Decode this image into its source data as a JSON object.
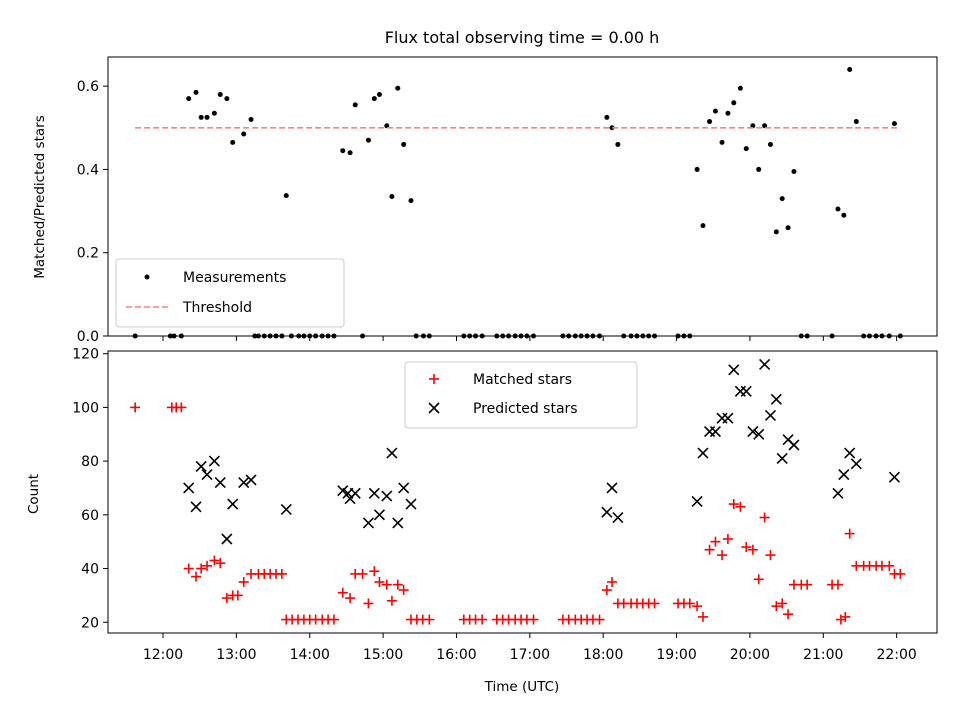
{
  "chart_data": [
    {
      "type": "scatter",
      "title": "Flux total observing time = 0.00 h",
      "ylabel": "Matched/Predicted stars",
      "xlabel": "",
      "ylim": [
        0,
        0.67
      ],
      "yticks": [
        0.0,
        0.2,
        0.4,
        0.6
      ],
      "ytick_labels": [
        "0.0",
        "0.2",
        "0.4",
        "0.6"
      ],
      "legend_position": "lower-left",
      "series": [
        {
          "name": "Measurements",
          "kind": "scatter",
          "marker": "dot",
          "color": "#000000",
          "points": [
            [
              11.62,
              0
            ],
            [
              12.1,
              0
            ],
            [
              12.15,
              0
            ],
            [
              12.25,
              0
            ],
            [
              12.35,
              0.57
            ],
            [
              12.45,
              0.585
            ],
            [
              12.52,
              0.525
            ],
            [
              12.6,
              0.525
            ],
            [
              12.7,
              0.535
            ],
            [
              12.78,
              0.58
            ],
            [
              12.87,
              0.57
            ],
            [
              12.95,
              0.465
            ],
            [
              13.1,
              0.485
            ],
            [
              13.2,
              0.52
            ],
            [
              13.25,
              0
            ],
            [
              13.3,
              0
            ],
            [
              13.38,
              0
            ],
            [
              13.46,
              0
            ],
            [
              13.54,
              0
            ],
            [
              13.62,
              0
            ],
            [
              13.68,
              0.337
            ],
            [
              13.75,
              0
            ],
            [
              13.85,
              0
            ],
            [
              13.92,
              0
            ],
            [
              14.0,
              0
            ],
            [
              14.08,
              0
            ],
            [
              14.17,
              0
            ],
            [
              14.25,
              0
            ],
            [
              14.33,
              0
            ],
            [
              14.45,
              0.445
            ],
            [
              14.55,
              0.44
            ],
            [
              14.62,
              0.555
            ],
            [
              14.72,
              0
            ],
            [
              14.8,
              0.47
            ],
            [
              14.88,
              0.57
            ],
            [
              14.95,
              0.58
            ],
            [
              15.05,
              0.505
            ],
            [
              15.12,
              0.335
            ],
            [
              15.2,
              0.595
            ],
            [
              15.28,
              0.46
            ],
            [
              15.38,
              0.325
            ],
            [
              15.45,
              0
            ],
            [
              15.55,
              0
            ],
            [
              15.63,
              0
            ],
            [
              16.1,
              0
            ],
            [
              16.18,
              0
            ],
            [
              16.26,
              0
            ],
            [
              16.35,
              0
            ],
            [
              16.55,
              0
            ],
            [
              16.63,
              0
            ],
            [
              16.71,
              0
            ],
            [
              16.8,
              0
            ],
            [
              16.88,
              0
            ],
            [
              16.96,
              0
            ],
            [
              17.05,
              0
            ],
            [
              17.45,
              0
            ],
            [
              17.53,
              0
            ],
            [
              17.62,
              0
            ],
            [
              17.7,
              0
            ],
            [
              17.78,
              0
            ],
            [
              17.86,
              0
            ],
            [
              17.95,
              0
            ],
            [
              18.05,
              0.525
            ],
            [
              18.12,
              0.5
            ],
            [
              18.2,
              0.46
            ],
            [
              18.28,
              0
            ],
            [
              18.38,
              0
            ],
            [
              18.46,
              0
            ],
            [
              18.54,
              0
            ],
            [
              18.62,
              0
            ],
            [
              18.7,
              0
            ],
            [
              19.02,
              0
            ],
            [
              19.1,
              0
            ],
            [
              19.18,
              0
            ],
            [
              19.28,
              0.4
            ],
            [
              19.36,
              0.265
            ],
            [
              19.45,
              0.515
            ],
            [
              19.53,
              0.54
            ],
            [
              19.62,
              0.465
            ],
            [
              19.7,
              0.535
            ],
            [
              19.78,
              0.56
            ],
            [
              19.87,
              0.595
            ],
            [
              19.95,
              0.45
            ],
            [
              20.04,
              0.505
            ],
            [
              20.12,
              0.4
            ],
            [
              20.2,
              0.505
            ],
            [
              20.28,
              0.46
            ],
            [
              20.36,
              0.25
            ],
            [
              20.44,
              0.33
            ],
            [
              20.52,
              0.26
            ],
            [
              20.6,
              0.395
            ],
            [
              20.7,
              0
            ],
            [
              20.78,
              0
            ],
            [
              21.12,
              0
            ],
            [
              21.2,
              0.305
            ],
            [
              21.28,
              0.29
            ],
            [
              21.36,
              0.64
            ],
            [
              21.45,
              0.515
            ],
            [
              21.55,
              0
            ],
            [
              21.63,
              0
            ],
            [
              21.72,
              0
            ],
            [
              21.8,
              0
            ],
            [
              21.9,
              0
            ],
            [
              21.97,
              0.51
            ],
            [
              22.05,
              0
            ]
          ]
        },
        {
          "name": "Threshold",
          "kind": "line",
          "style": "dashed",
          "color": "#ff8080",
          "points": [
            [
              11.62,
              0.5
            ],
            [
              22.05,
              0.5
            ]
          ]
        }
      ]
    },
    {
      "type": "scatter",
      "title": "",
      "ylabel": "Count",
      "xlabel": "Time (UTC)",
      "ylim": [
        16,
        121
      ],
      "yticks": [
        20,
        40,
        60,
        80,
        100,
        120
      ],
      "ytick_labels": [
        "20",
        "40",
        "60",
        "80",
        "100",
        "120"
      ],
      "xlim": [
        11.25,
        22.55
      ],
      "xticks": [
        12,
        13,
        14,
        15,
        16,
        17,
        18,
        19,
        20,
        21,
        22
      ],
      "xtick_labels": [
        "12:00",
        "13:00",
        "14:00",
        "15:00",
        "16:00",
        "17:00",
        "18:00",
        "19:00",
        "20:00",
        "21:00",
        "22:00"
      ],
      "legend_position": "upper-center",
      "series": [
        {
          "name": "Matched stars",
          "kind": "scatter",
          "marker": "plus",
          "color": "#ff0000",
          "points": [
            [
              11.62,
              100
            ],
            [
              12.12,
              100
            ],
            [
              12.18,
              100
            ],
            [
              12.25,
              100
            ],
            [
              12.35,
              40
            ],
            [
              12.45,
              37
            ],
            [
              12.52,
              40
            ],
            [
              12.6,
              41
            ],
            [
              12.7,
              43
            ],
            [
              12.78,
              42
            ],
            [
              12.87,
              29
            ],
            [
              12.95,
              30
            ],
            [
              13.02,
              30
            ],
            [
              13.1,
              35
            ],
            [
              13.2,
              38
            ],
            [
              13.3,
              38
            ],
            [
              13.38,
              38
            ],
            [
              13.46,
              38
            ],
            [
              13.54,
              38
            ],
            [
              13.62,
              38
            ],
            [
              13.68,
              21
            ],
            [
              13.76,
              21
            ],
            [
              13.84,
              21
            ],
            [
              13.92,
              21
            ],
            [
              14.0,
              21
            ],
            [
              14.08,
              21
            ],
            [
              14.17,
              21
            ],
            [
              14.25,
              21
            ],
            [
              14.33,
              21
            ],
            [
              14.45,
              31
            ],
            [
              14.55,
              29
            ],
            [
              14.62,
              38
            ],
            [
              14.72,
              38
            ],
            [
              14.8,
              27
            ],
            [
              14.88,
              39
            ],
            [
              14.95,
              35
            ],
            [
              15.05,
              34
            ],
            [
              15.12,
              28
            ],
            [
              15.2,
              34
            ],
            [
              15.28,
              32
            ],
            [
              15.38,
              21
            ],
            [
              15.46,
              21
            ],
            [
              15.54,
              21
            ],
            [
              15.63,
              21
            ],
            [
              16.1,
              21
            ],
            [
              16.18,
              21
            ],
            [
              16.26,
              21
            ],
            [
              16.35,
              21
            ],
            [
              16.55,
              21
            ],
            [
              16.63,
              21
            ],
            [
              16.71,
              21
            ],
            [
              16.8,
              21
            ],
            [
              16.88,
              21
            ],
            [
              16.96,
              21
            ],
            [
              17.05,
              21
            ],
            [
              17.45,
              21
            ],
            [
              17.53,
              21
            ],
            [
              17.62,
              21
            ],
            [
              17.7,
              21
            ],
            [
              17.78,
              21
            ],
            [
              17.86,
              21
            ],
            [
              17.95,
              21
            ],
            [
              18.05,
              32
            ],
            [
              18.12,
              35
            ],
            [
              18.2,
              27
            ],
            [
              18.28,
              27
            ],
            [
              18.38,
              27
            ],
            [
              18.46,
              27
            ],
            [
              18.54,
              27
            ],
            [
              18.62,
              27
            ],
            [
              18.7,
              27
            ],
            [
              19.02,
              27
            ],
            [
              19.1,
              27
            ],
            [
              19.18,
              27
            ],
            [
              19.28,
              26
            ],
            [
              19.36,
              22
            ],
            [
              19.45,
              47
            ],
            [
              19.53,
              50
            ],
            [
              19.62,
              45
            ],
            [
              19.7,
              51
            ],
            [
              19.78,
              64
            ],
            [
              19.87,
              63
            ],
            [
              19.95,
              48
            ],
            [
              20.04,
              47
            ],
            [
              20.12,
              36
            ],
            [
              20.2,
              59
            ],
            [
              20.28,
              45
            ],
            [
              20.36,
              26
            ],
            [
              20.44,
              27
            ],
            [
              20.52,
              23
            ],
            [
              20.6,
              34
            ],
            [
              20.7,
              34
            ],
            [
              20.78,
              34
            ],
            [
              21.12,
              34
            ],
            [
              21.2,
              34
            ],
            [
              21.24,
              21
            ],
            [
              21.3,
              22
            ],
            [
              21.36,
              53
            ],
            [
              21.45,
              41
            ],
            [
              21.55,
              41
            ],
            [
              21.63,
              41
            ],
            [
              21.72,
              41
            ],
            [
              21.8,
              41
            ],
            [
              21.9,
              41
            ],
            [
              21.97,
              38
            ],
            [
              22.05,
              38
            ]
          ]
        },
        {
          "name": "Predicted stars",
          "kind": "scatter",
          "marker": "x",
          "color": "#000000",
          "points": [
            [
              12.35,
              70
            ],
            [
              12.45,
              63
            ],
            [
              12.52,
              78
            ],
            [
              12.6,
              75
            ],
            [
              12.7,
              80
            ],
            [
              12.78,
              72
            ],
            [
              12.87,
              51
            ],
            [
              12.95,
              64
            ],
            [
              13.1,
              72
            ],
            [
              13.2,
              73
            ],
            [
              13.68,
              62
            ],
            [
              14.45,
              69
            ],
            [
              14.52,
              68
            ],
            [
              14.55,
              66
            ],
            [
              14.62,
              68
            ],
            [
              14.8,
              57
            ],
            [
              14.88,
              68
            ],
            [
              14.95,
              60
            ],
            [
              15.05,
              67
            ],
            [
              15.12,
              83
            ],
            [
              15.2,
              57
            ],
            [
              15.28,
              70
            ],
            [
              15.38,
              64
            ],
            [
              18.05,
              61
            ],
            [
              18.12,
              70
            ],
            [
              18.2,
              59
            ],
            [
              19.28,
              65
            ],
            [
              19.36,
              83
            ],
            [
              19.45,
              91
            ],
            [
              19.53,
              91
            ],
            [
              19.62,
              96
            ],
            [
              19.7,
              96
            ],
            [
              19.78,
              114
            ],
            [
              19.87,
              106
            ],
            [
              19.95,
              106
            ],
            [
              20.04,
              91
            ],
            [
              20.12,
              90
            ],
            [
              20.2,
              116
            ],
            [
              20.28,
              97
            ],
            [
              20.36,
              103
            ],
            [
              20.44,
              81
            ],
            [
              20.52,
              88
            ],
            [
              20.6,
              86
            ],
            [
              21.2,
              68
            ],
            [
              21.28,
              75
            ],
            [
              21.36,
              83
            ],
            [
              21.45,
              79
            ],
            [
              21.97,
              74
            ]
          ]
        }
      ]
    }
  ]
}
